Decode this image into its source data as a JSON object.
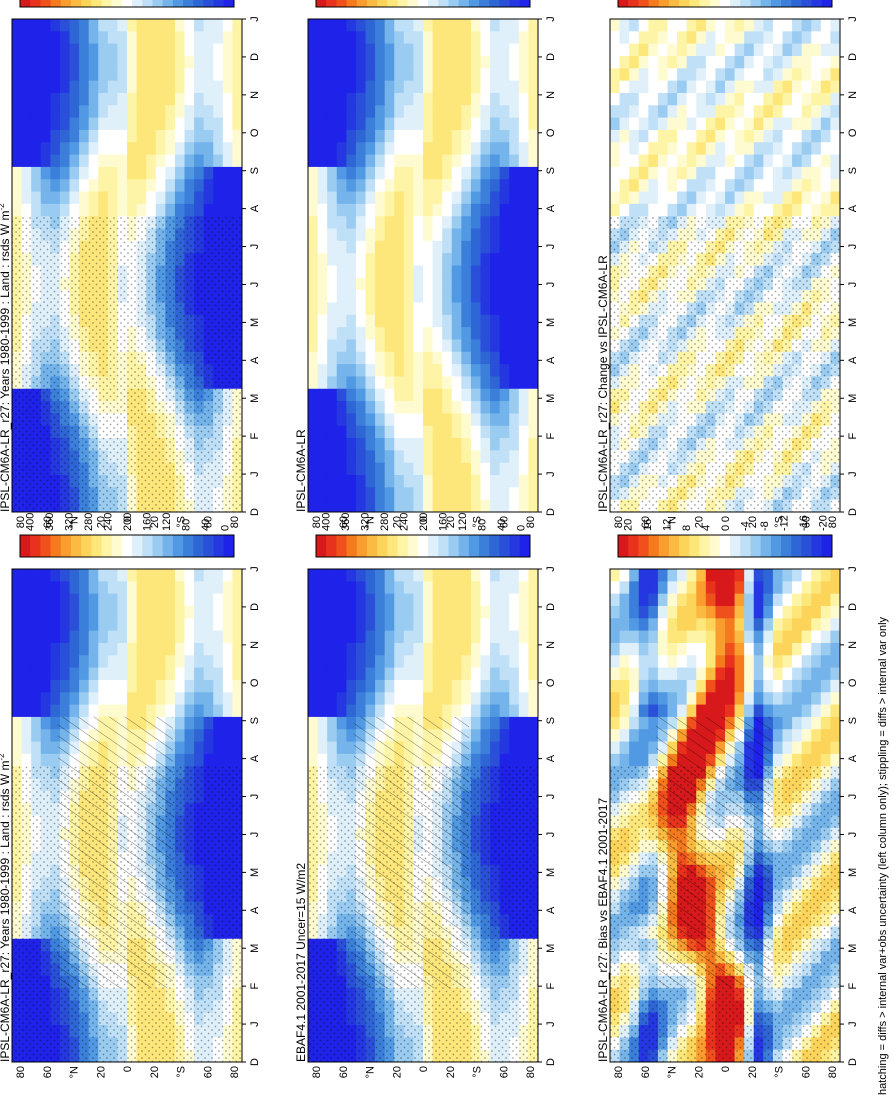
{
  "figure": {
    "footnote": "hatching = diffs > internal var+obs uncertainty (left column only); stippling = diffs > internal var only"
  },
  "colors": {
    "abs_levels": [
      "#d7191c",
      "#e8321d",
      "#f0501c",
      "#f57a1e",
      "#f99e2e",
      "#fbbb42",
      "#fcd45a",
      "#fde77a",
      "#fef4a6",
      "#fffbd0",
      "#ffffff",
      "#dff0fb",
      "#bfe0f7",
      "#9acbf1",
      "#74b4ea",
      "#5199e2",
      "#3b7fdb",
      "#2f66d6",
      "#2a4fd8",
      "#2437e0",
      "#1f22e8"
    ],
    "diff_levels": [
      "#d7191c",
      "#e8321d",
      "#f0501c",
      "#f57a1e",
      "#f99e2e",
      "#fbbb42",
      "#fcd45a",
      "#fde77a",
      "#fef4a6",
      "#fffbd0",
      "#ffffff",
      "#dff0fb",
      "#bfe0f7",
      "#9acbf1",
      "#74b4ea",
      "#5199e2",
      "#3b7fdb",
      "#2f66d6",
      "#2a4fd8",
      "#2437e0",
      "#1f22e8"
    ]
  },
  "chart_data": [
    {
      "type": "heatmap",
      "panel": "top-left",
      "title": "IPSL-CM6A-LR_r27: Years 1980-1999 : Land : rsds W m",
      "title_superscript": "-2",
      "x": [
        "D",
        "J",
        "F",
        "M",
        "A",
        "M",
        "J",
        "J",
        "A",
        "S",
        "O",
        "N",
        "D",
        "J"
      ],
      "y_tick_labels": [
        "80",
        "60",
        "°N",
        "20",
        "0",
        "20",
        "°S",
        "60",
        "80"
      ],
      "colorbar": [
        "400",
        "360",
        "320",
        "280",
        "240",
        "200",
        "160",
        "120",
        "80",
        "40",
        "0"
      ],
      "hatching": true,
      "stippling": true,
      "field": "abs"
    },
    {
      "type": "heatmap",
      "panel": "top-right",
      "title": "IPSL-CM6A-LR_r27: Years 1980-1999 : Land : rsds W m",
      "title_superscript": "-2",
      "x": [
        "D",
        "J",
        "F",
        "M",
        "A",
        "M",
        "J",
        "J",
        "A",
        "S",
        "O",
        "N",
        "D",
        "J"
      ],
      "y_tick_labels": [
        "80",
        "60",
        "°N",
        "20",
        "0",
        "20",
        "°S",
        "60",
        "80"
      ],
      "colorbar": [
        "400",
        "360",
        "320",
        "280",
        "240",
        "200",
        "160",
        "120",
        "80",
        "40",
        "0"
      ],
      "hatching": false,
      "stippling": true,
      "field": "abs"
    },
    {
      "type": "heatmap",
      "panel": "middle-left",
      "title": "EBAF4.1 2001-2017 Uncer=15 W/m2",
      "x": [
        "D",
        "J",
        "F",
        "M",
        "A",
        "M",
        "J",
        "J",
        "A",
        "S",
        "O",
        "N",
        "D",
        "J"
      ],
      "y_tick_labels": [
        "80",
        "60",
        "°N",
        "20",
        "0",
        "20",
        "°S",
        "60",
        "80"
      ],
      "colorbar": [
        "400",
        "360",
        "320",
        "280",
        "240",
        "200",
        "160",
        "120",
        "80",
        "40",
        "0"
      ],
      "hatching": true,
      "stippling": true,
      "field": "abs"
    },
    {
      "type": "heatmap",
      "panel": "middle-right",
      "title": "IPSL-CM6A-LR",
      "x": [
        "D",
        "J",
        "F",
        "M",
        "A",
        "M",
        "J",
        "J",
        "A",
        "S",
        "O",
        "N",
        "D",
        "J"
      ],
      "y_tick_labels": [
        "80",
        "60",
        "°N",
        "20",
        "0",
        "20",
        "°S",
        "60",
        "80"
      ],
      "colorbar": [
        "400",
        "360",
        "320",
        "280",
        "240",
        "200",
        "160",
        "120",
        "80",
        "40",
        "0"
      ],
      "hatching": false,
      "stippling": false,
      "field": "abs"
    },
    {
      "type": "heatmap",
      "panel": "bottom-left",
      "title": "IPSL-CM6A-LR_r27: Bias vs EBAF4.1 2001-2017",
      "x": [
        "D",
        "J",
        "F",
        "M",
        "A",
        "M",
        "J",
        "J",
        "A",
        "S",
        "O",
        "N",
        "D",
        "J"
      ],
      "y_tick_labels": [
        "80",
        "60",
        "°N",
        "20",
        "0",
        "20",
        "°S",
        "60",
        "80"
      ],
      "colorbar": [
        "20",
        "16",
        "12",
        "8",
        "4",
        "0",
        "-4",
        "-8",
        "-12",
        "-16",
        "-20"
      ],
      "hatching": true,
      "stippling": true,
      "field": "bias"
    },
    {
      "type": "heatmap",
      "panel": "bottom-right",
      "title": "IPSL-CM6A-LR_r27: Change vs IPSL-CM6A-LR",
      "x": [
        "D",
        "J",
        "F",
        "M",
        "A",
        "M",
        "J",
        "J",
        "A",
        "S",
        "O",
        "N",
        "D",
        "J"
      ],
      "y_tick_labels": [
        "80",
        "60",
        "°N",
        "20",
        "0",
        "20",
        "°S",
        "60",
        "80"
      ],
      "colorbar": [
        "20",
        "16",
        "12",
        "8",
        "4",
        "0",
        "-4",
        "-8",
        "-12",
        "-16",
        "-20"
      ],
      "hatching": false,
      "stippling": true,
      "field": "change"
    }
  ]
}
